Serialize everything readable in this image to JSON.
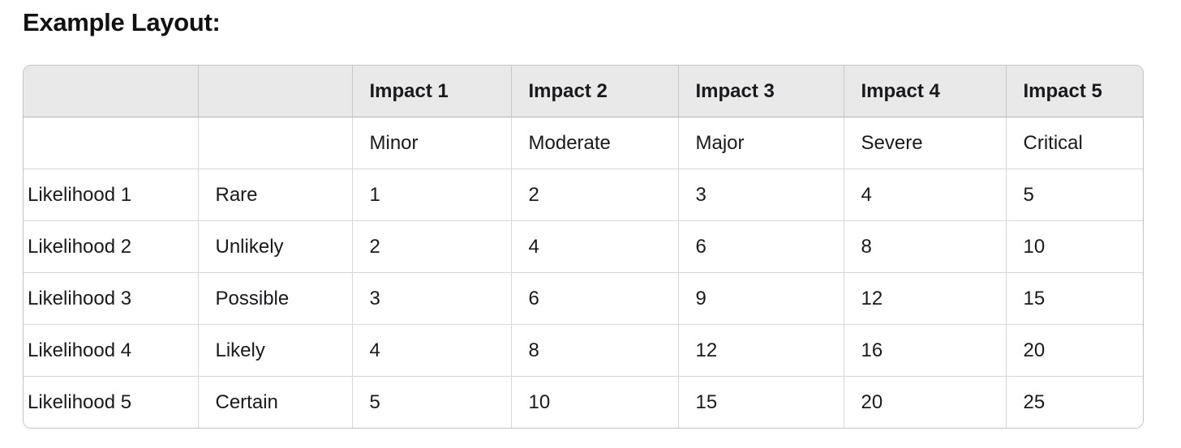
{
  "page": {
    "title": "Example Layout:"
  },
  "table": {
    "header_row": [
      "",
      "",
      "Impact 1",
      "Impact 2",
      "Impact 3",
      "Impact 4",
      "Impact 5"
    ],
    "subheader_row": [
      "",
      "",
      "Minor",
      "Moderate",
      "Major",
      "Severe",
      "Critical"
    ],
    "rows": [
      {
        "likelihood": "Likelihood 1",
        "label": "Rare",
        "values": [
          "1",
          "2",
          "3",
          "4",
          "5"
        ]
      },
      {
        "likelihood": "Likelihood 2",
        "label": "Unlikely",
        "values": [
          "2",
          "4",
          "6",
          "8",
          "10"
        ]
      },
      {
        "likelihood": "Likelihood 3",
        "label": "Possible",
        "values": [
          "3",
          "6",
          "9",
          "12",
          "15"
        ]
      },
      {
        "likelihood": "Likelihood 4",
        "label": "Likely",
        "values": [
          "4",
          "8",
          "12",
          "16",
          "20"
        ]
      },
      {
        "likelihood": "Likelihood 5",
        "label": "Certain",
        "values": [
          "5",
          "10",
          "15",
          "20",
          "25"
        ]
      }
    ],
    "colors": {
      "header_bg": "#e9e9e9",
      "outer_border": "#c3c3c3",
      "inner_border": "#d8d8d8",
      "header_bottom_border": "#b3b3b3",
      "text": "#1a1a1c",
      "background": "#ffffff"
    }
  }
}
